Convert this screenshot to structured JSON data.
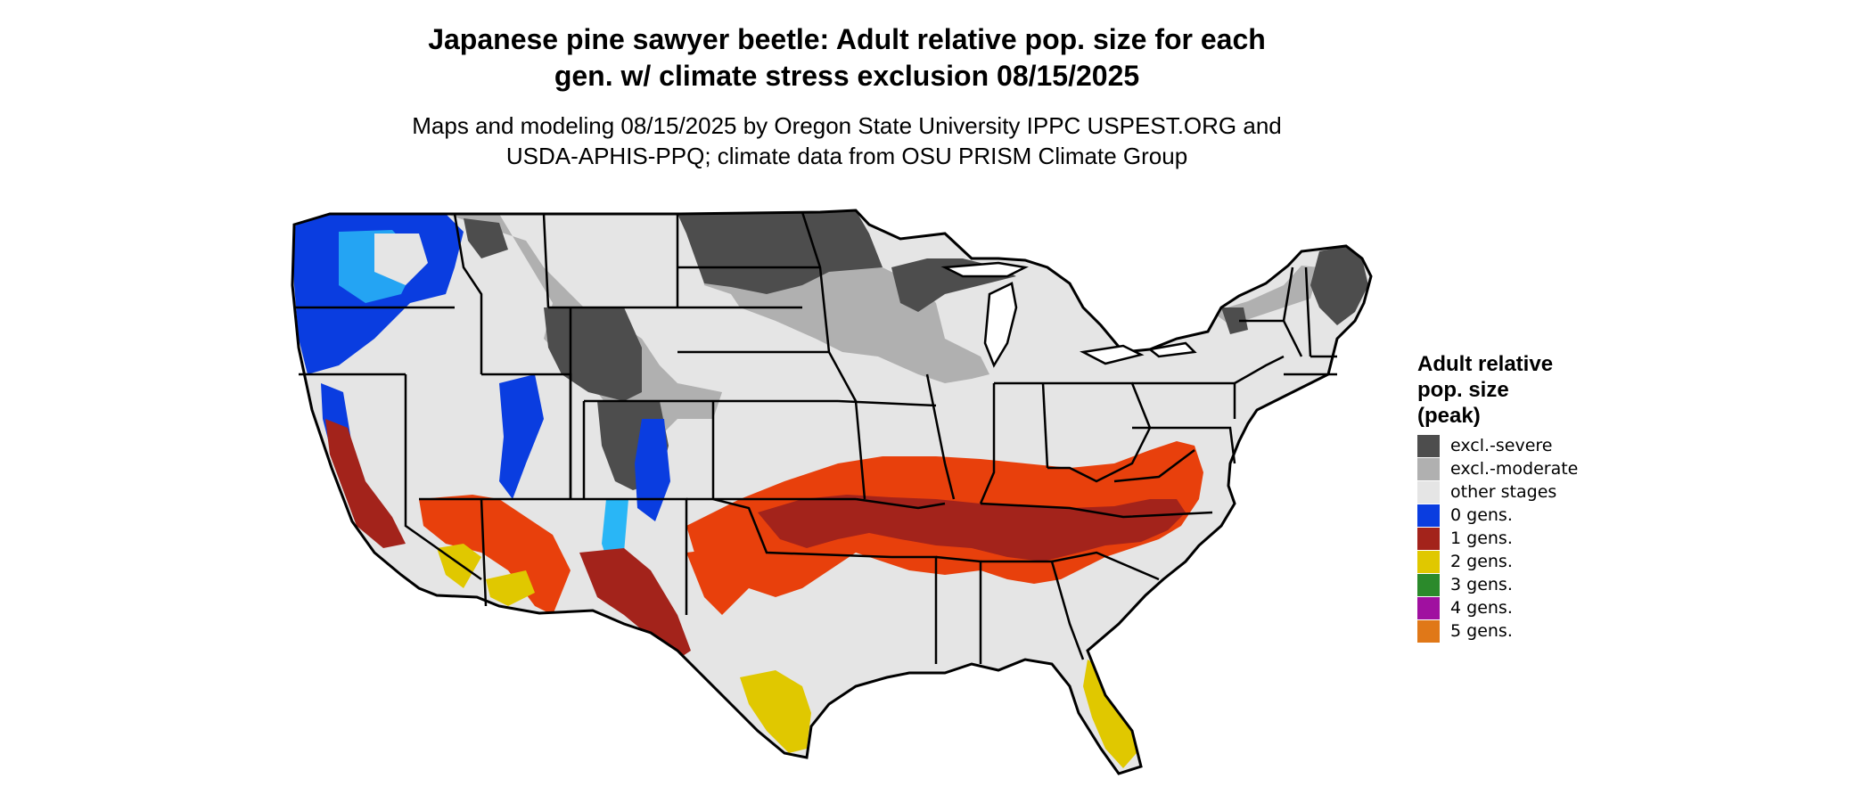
{
  "header": {
    "title_line1": "Japanese pine sawyer beetle: Adult relative pop. size for each",
    "title_line2": "gen. w/ climate stress exclusion 08/15/2025",
    "subtitle_line1": "Maps and modeling 08/15/2025 by Oregon State University IPPC USPEST.ORG and",
    "subtitle_line2": "USDA-APHIS-PPQ; climate data from OSU PRISM Climate Group"
  },
  "legend": {
    "title_line1": "Adult relative",
    "title_line2": "pop. size",
    "title_line3": "(peak)",
    "items": [
      {
        "label": "excl.-severe",
        "color": "#4d4d4d"
      },
      {
        "label": "excl.-moderate",
        "color": "#b0b0b0"
      },
      {
        "label": "other stages",
        "color": "#e5e5e5"
      },
      {
        "label": "0 gens.",
        "color": "#0a3de0"
      },
      {
        "label": "1 gens.",
        "color": "#a3231b"
      },
      {
        "label": "2 gens.",
        "color": "#e0c800"
      },
      {
        "label": "3 gens.",
        "color": "#2b8a2b"
      },
      {
        "label": "4 gens.",
        "color": "#a010a0"
      },
      {
        "label": "5 gens.",
        "color": "#e07818"
      }
    ]
  },
  "map_colors": {
    "state_border": "#000000",
    "light_blue": "#29b6f6",
    "orange_red": "#e8400c"
  }
}
